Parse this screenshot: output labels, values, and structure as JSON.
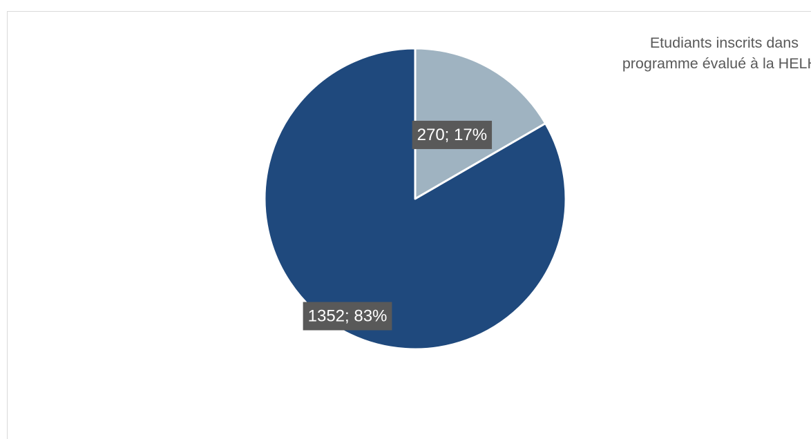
{
  "chart_data": {
    "type": "pie",
    "title": "",
    "series": [
      {
        "name": "",
        "values": [
          270,
          1352
        ],
        "percents": [
          17,
          83
        ],
        "labels": [
          "270; 17%",
          "1352; 83%"
        ],
        "colors": [
          "#9fb3c1",
          "#1f497d"
        ]
      }
    ],
    "legend": {
      "placement": "top-right",
      "entries": [
        "Etudiants inscrits dans",
        "programme évalué à la HELHa"
      ]
    },
    "label_style": {
      "background": "#595959",
      "text_color": "#ffffff"
    },
    "slice_border_color": "#ffffff"
  }
}
